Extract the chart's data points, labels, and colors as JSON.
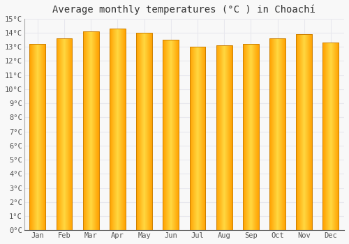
{
  "title": "Average monthly temperatures (°C ) in Choachí",
  "months": [
    "Jan",
    "Feb",
    "Mar",
    "Apr",
    "May",
    "Jun",
    "Jul",
    "Aug",
    "Sep",
    "Oct",
    "Nov",
    "Dec"
  ],
  "values": [
    13.2,
    13.6,
    14.1,
    14.3,
    14.0,
    13.5,
    13.0,
    13.1,
    13.2,
    13.6,
    13.9,
    13.3
  ],
  "bar_color_center": "#FFD740",
  "bar_color_edge": "#FFA000",
  "bar_outline_color": "#CC8000",
  "ylim": [
    0,
    15
  ],
  "yticks": [
    0,
    1,
    2,
    3,
    4,
    5,
    6,
    7,
    8,
    9,
    10,
    11,
    12,
    13,
    14,
    15
  ],
  "background_color": "#f8f8f8",
  "grid_color": "#e8e8ee",
  "title_fontsize": 10,
  "tick_fontsize": 7.5,
  "bar_width": 0.6,
  "num_gradient_steps": 80
}
